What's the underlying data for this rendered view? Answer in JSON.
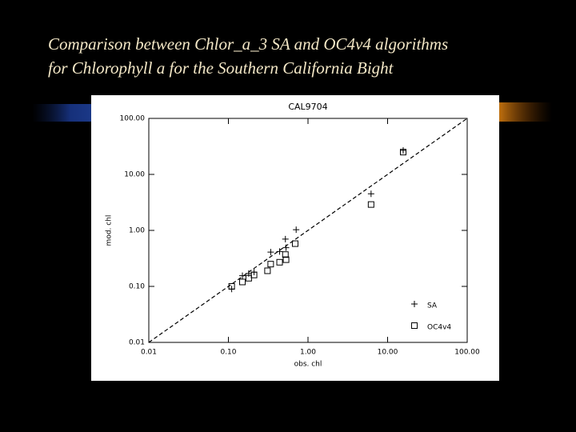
{
  "slide": {
    "title": [
      "Comparison between Chlor_a_3 SA and OC4v4 algorithms",
      "for Chlorophyll a for the Southern California Bight"
    ]
  },
  "chart_data": {
    "type": "scatter",
    "title": "CAL9704",
    "x_label": "obs. chl",
    "y_label": "mod. chl",
    "log_scale": true,
    "identity_line": true,
    "legend": "lower right",
    "xlim": [
      0.01,
      100
    ],
    "ylim": [
      0.01,
      100
    ],
    "xticks": [
      {
        "value": 0.01,
        "label": "0.01"
      },
      {
        "value": 0.1,
        "label": "0.10"
      },
      {
        "value": 1,
        "label": "1.00"
      },
      {
        "value": 10,
        "label": "10.00"
      },
      {
        "value": 100,
        "label": "100.00"
      }
    ],
    "yticks": [
      {
        "value": 0.01,
        "label": "0.01"
      },
      {
        "value": 0.1,
        "label": "0.10"
      },
      {
        "value": 1,
        "label": "1.00"
      },
      {
        "value": 10,
        "label": "10.00"
      },
      {
        "value": 100,
        "label": "100.00"
      }
    ],
    "series": [
      {
        "name": "SA",
        "marker": "plus",
        "color": "#000000",
        "x": [
          0.11,
          0.15,
          0.18,
          0.21,
          0.34,
          0.44,
          0.52,
          0.53,
          0.71,
          6.2,
          15.7
        ],
        "values": [
          0.09,
          0.155,
          0.17,
          0.18,
          0.41,
          0.42,
          0.7,
          0.49,
          1.03,
          4.5,
          26.8
        ]
      },
      {
        "name": "OC4v4",
        "marker": "square",
        "color": "#000000",
        "x": [
          0.11,
          0.15,
          0.18,
          0.21,
          0.31,
          0.34,
          0.44,
          0.52,
          0.53,
          0.69,
          6.2,
          15.7
        ],
        "values": [
          0.1,
          0.12,
          0.14,
          0.16,
          0.19,
          0.25,
          0.27,
          0.37,
          0.3,
          0.58,
          2.9,
          25
        ]
      }
    ]
  }
}
